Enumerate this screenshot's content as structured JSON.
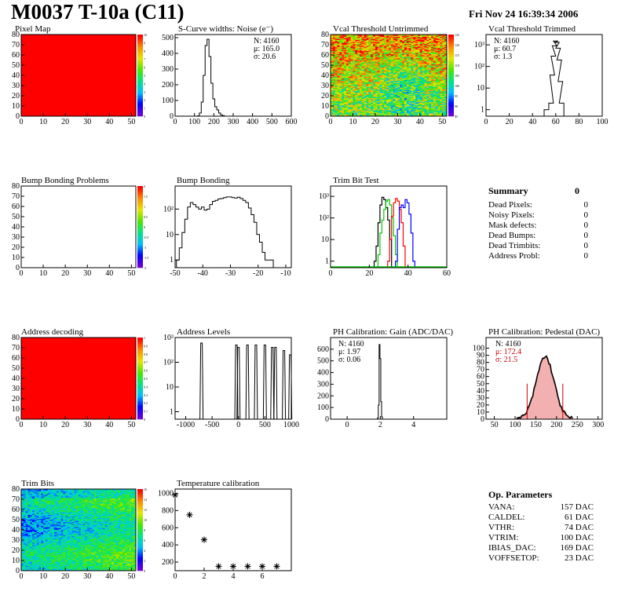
{
  "header": {
    "title": "M0037 T-10a (C11)",
    "date": "Fri Nov 24 16:39:34 2006"
  },
  "summary": {
    "title": "Summary",
    "total": "0",
    "rows": [
      {
        "label": "Dead Pixels:",
        "value": "0"
      },
      {
        "label": "Noisy Pixels:",
        "value": "0"
      },
      {
        "label": "Mask defects:",
        "value": "0"
      },
      {
        "label": "Dead Bumps:",
        "value": "0"
      },
      {
        "label": "Dead Trimbits:",
        "value": "0"
      },
      {
        "label": "Address Probl:",
        "value": "0"
      }
    ]
  },
  "op_params": {
    "title": "Op. Parameters",
    "rows": [
      {
        "label": "VANA:",
        "value": "157 DAC"
      },
      {
        "label": "CALDEL:",
        "value": "61 DAC"
      },
      {
        "label": "VTHR:",
        "value": "74 DAC"
      },
      {
        "label": "VTRIM:",
        "value": "100 DAC"
      },
      {
        "label": "IBIAS_DAC:",
        "value": "169 DAC"
      },
      {
        "label": "VOFFSETOP:",
        "value": "23 DAC"
      }
    ]
  },
  "chart_data": [
    {
      "id": "pixel-map",
      "type": "heatmap",
      "title": "Pixel Map",
      "pattern": "uniform",
      "fill_color": "#ff0000",
      "xlim": [
        0,
        52
      ],
      "ylim": [
        0,
        80
      ],
      "xticks": [
        0,
        10,
        20,
        30,
        40,
        50
      ],
      "yticks": [
        0,
        10,
        20,
        30,
        40,
        50,
        60,
        70,
        80
      ],
      "zlim": [
        0,
        10
      ],
      "zticks": [
        0,
        1,
        2,
        3,
        4,
        5,
        6,
        7,
        8,
        9,
        10
      ]
    },
    {
      "id": "scurve-widths",
      "type": "histogram",
      "title": "S-Curve widths: Noise (e⁻)",
      "xlim": [
        0,
        600
      ],
      "ylim": [
        0,
        520
      ],
      "xticks": [
        0,
        100,
        200,
        300,
        400,
        500,
        600
      ],
      "yticks": [
        0,
        100,
        200,
        300,
        400,
        500
      ],
      "stats": [
        "N: 4160",
        "μ: 165.0",
        "σ: 20.6"
      ],
      "bins": [
        {
          "x": 120,
          "y": 2
        },
        {
          "x": 130,
          "y": 20
        },
        {
          "x": 140,
          "y": 90
        },
        {
          "x": 150,
          "y": 260
        },
        {
          "x": 160,
          "y": 450
        },
        {
          "x": 170,
          "y": 490
        },
        {
          "x": 180,
          "y": 380
        },
        {
          "x": 190,
          "y": 210
        },
        {
          "x": 200,
          "y": 110
        },
        {
          "x": 210,
          "y": 60
        },
        {
          "x": 220,
          "y": 40
        },
        {
          "x": 230,
          "y": 20
        },
        {
          "x": 240,
          "y": 8
        },
        {
          "x": 250,
          "y": 3
        }
      ]
    },
    {
      "id": "vcal-untrimmed",
      "type": "heatmap",
      "title": "Vcal Threshold Untrimmed",
      "pattern": "noisy",
      "xlim": [
        0,
        52
      ],
      "ylim": [
        0,
        80
      ],
      "xticks": [
        0,
        10,
        20,
        30,
        40,
        50
      ],
      "yticks": [
        0,
        10,
        20,
        30,
        40,
        50,
        60,
        70,
        80
      ],
      "zlim": [
        85,
        125
      ],
      "zticks": [
        85,
        90,
        95,
        100,
        105,
        110,
        115,
        120,
        125
      ]
    },
    {
      "id": "vcal-trimmed",
      "type": "histogram",
      "title": "Vcal Threshold Trimmed",
      "log": true,
      "xlim": [
        0,
        100
      ],
      "ylim": [
        0.5,
        3000
      ],
      "xticks": [
        0,
        20,
        40,
        60,
        80,
        100
      ],
      "ytick_labels": [
        "1",
        "10",
        "10²",
        "10³"
      ],
      "stats": [
        "N: 4160",
        "μ: 60.7",
        "σ:  1.3"
      ],
      "bins": [
        {
          "x": 52,
          "y": 1
        },
        {
          "x": 56,
          "y": 2
        },
        {
          "x": 57,
          "y": 40
        },
        {
          "x": 58,
          "y": 300
        },
        {
          "x": 59,
          "y": 900
        },
        {
          "x": 60,
          "y": 1500
        },
        {
          "x": 61,
          "y": 1300
        },
        {
          "x": 62,
          "y": 700
        },
        {
          "x": 63,
          "y": 200
        },
        {
          "x": 64,
          "y": 20
        },
        {
          "x": 65,
          "y": 2
        }
      ]
    },
    {
      "id": "bump-problems",
      "type": "heatmap",
      "title": "Bump Bonding Problems",
      "pattern": "empty",
      "xlim": [
        0,
        52
      ],
      "ylim": [
        0,
        80
      ],
      "xticks": [
        0,
        10,
        20,
        30,
        40,
        50
      ],
      "yticks": [
        0,
        10,
        20,
        30,
        40,
        50,
        60,
        70,
        80
      ],
      "zlim": [
        -2,
        2
      ],
      "zticks": [
        -2,
        -1.5,
        -1,
        -0.5,
        0,
        0.5,
        1,
        1.5,
        2
      ]
    },
    {
      "id": "bump-bonding",
      "type": "histogram",
      "title": "Bump Bonding",
      "log": true,
      "xlim": [
        -50,
        -8
      ],
      "ylim": [
        0.5,
        800
      ],
      "xticks": [
        -50,
        -40,
        -30,
        -20,
        -10
      ],
      "ytick_labels": [
        "1",
        "10",
        "10²"
      ],
      "bins": [
        {
          "x": -49,
          "y": 1
        },
        {
          "x": -48,
          "y": 3
        },
        {
          "x": -47,
          "y": 12
        },
        {
          "x": -46,
          "y": 40
        },
        {
          "x": -45,
          "y": 120
        },
        {
          "x": -44,
          "y": 180
        },
        {
          "x": -43,
          "y": 150
        },
        {
          "x": -42,
          "y": 120
        },
        {
          "x": -41,
          "y": 100
        },
        {
          "x": -40,
          "y": 120
        },
        {
          "x": -39,
          "y": 90
        },
        {
          "x": -38,
          "y": 100
        },
        {
          "x": -37,
          "y": 150
        },
        {
          "x": -36,
          "y": 200
        },
        {
          "x": -35,
          "y": 220
        },
        {
          "x": -34,
          "y": 250
        },
        {
          "x": -33,
          "y": 260
        },
        {
          "x": -32,
          "y": 280
        },
        {
          "x": -31,
          "y": 300
        },
        {
          "x": -30,
          "y": 300
        },
        {
          "x": -29,
          "y": 280
        },
        {
          "x": -28,
          "y": 270
        },
        {
          "x": -27,
          "y": 290
        },
        {
          "x": -26,
          "y": 260
        },
        {
          "x": -25,
          "y": 220
        },
        {
          "x": -24,
          "y": 180
        },
        {
          "x": -23,
          "y": 110
        },
        {
          "x": -22,
          "y": 60
        },
        {
          "x": -21,
          "y": 30
        },
        {
          "x": -20,
          "y": 10
        },
        {
          "x": -19,
          "y": 5
        },
        {
          "x": -18,
          "y": 2
        },
        {
          "x": -17,
          "y": 1
        },
        {
          "x": -15,
          "y": 1
        }
      ]
    },
    {
      "id": "trim-bit-test",
      "type": "histogram",
      "title": "Trim Bit Test",
      "log": true,
      "xlim": [
        0,
        60
      ],
      "ylim": [
        0.5,
        3000
      ],
      "xticks": [
        0,
        20,
        40,
        60
      ],
      "ytick_labels": [
        "1",
        "10",
        "10²",
        "10³"
      ],
      "series": [
        {
          "color": "#000000",
          "bins": [
            {
              "x": 23,
              "y": 1
            },
            {
              "x": 24,
              "y": 5
            },
            {
              "x": 25,
              "y": 60
            },
            {
              "x": 26,
              "y": 400
            },
            {
              "x": 27,
              "y": 900
            },
            {
              "x": 28,
              "y": 700
            },
            {
              "x": 29,
              "y": 300
            },
            {
              "x": 30,
              "y": 80
            },
            {
              "x": 31,
              "y": 10
            }
          ]
        },
        {
          "color": "#00cc00",
          "bins": [
            {
              "x": 25,
              "y": 2
            },
            {
              "x": 26,
              "y": 20
            },
            {
              "x": 27,
              "y": 80
            },
            {
              "x": 28,
              "y": 250
            },
            {
              "x": 29,
              "y": 600
            },
            {
              "x": 30,
              "y": 700
            },
            {
              "x": 31,
              "y": 400
            },
            {
              "x": 32,
              "y": 100
            },
            {
              "x": 33,
              "y": 15
            },
            {
              "x": 34,
              "y": 2
            }
          ]
        },
        {
          "color": "#ff0000",
          "bins": [
            {
              "x": 30,
              "y": 1
            },
            {
              "x": 31,
              "y": 10
            },
            {
              "x": 32,
              "y": 120
            },
            {
              "x": 33,
              "y": 500
            },
            {
              "x": 34,
              "y": 800
            },
            {
              "x": 35,
              "y": 600
            },
            {
              "x": 36,
              "y": 250
            },
            {
              "x": 37,
              "y": 60
            },
            {
              "x": 38,
              "y": 5
            }
          ]
        },
        {
          "color": "#0000ff",
          "bins": [
            {
              "x": 34,
              "y": 1
            },
            {
              "x": 35,
              "y": 30
            },
            {
              "x": 36,
              "y": 300
            },
            {
              "x": 37,
              "y": 400
            },
            {
              "x": 38,
              "y": 300
            },
            {
              "x": 39,
              "y": 700
            },
            {
              "x": 40,
              "y": 500
            },
            {
              "x": 41,
              "y": 150
            },
            {
              "x": 42,
              "y": 20
            },
            {
              "x": 43,
              "y": 1
            }
          ]
        }
      ]
    },
    {
      "id": "address-decoding",
      "type": "heatmap",
      "title": "Address decoding",
      "pattern": "uniform",
      "fill_color": "#ff0000",
      "xlim": [
        0,
        52
      ],
      "ylim": [
        0,
        80
      ],
      "xticks": [
        0,
        10,
        20,
        30,
        40,
        50
      ],
      "yticks": [
        0,
        10,
        20,
        30,
        40,
        50,
        60,
        70,
        80
      ],
      "zlim": [
        0,
        1
      ],
      "zticks": [
        0,
        0.1,
        0.2,
        0.3,
        0.4,
        0.5,
        0.6,
        0.7,
        0.8,
        0.9,
        1
      ]
    },
    {
      "id": "address-levels",
      "type": "histogram",
      "title": "Address Levels",
      "log": true,
      "xlim": [
        -1200,
        1000
      ],
      "ylim": [
        0.5,
        1000
      ],
      "xticks": [
        -1000,
        -500,
        0,
        500,
        1000
      ],
      "ytick_labels": [
        "1",
        "10",
        "10²",
        "10³"
      ],
      "spikes": [
        {
          "x": -700,
          "y": 600
        },
        {
          "x": -40,
          "y": 500
        },
        {
          "x": 0,
          "y": 400
        },
        {
          "x": 170,
          "y": 500
        },
        {
          "x": 330,
          "y": 500
        },
        {
          "x": 500,
          "y": 500
        },
        {
          "x": 640,
          "y": 400
        },
        {
          "x": 700,
          "y": 400
        },
        {
          "x": 860,
          "y": 300
        },
        {
          "x": 980,
          "y": 200
        }
      ]
    },
    {
      "id": "ph-gain",
      "type": "histogram",
      "title": "PH Calibration: Gain (ADC/DAC)",
      "xlim": [
        -1,
        6
      ],
      "ylim": [
        0,
        700
      ],
      "xticks": [
        0,
        2,
        4
      ],
      "yticks": [
        0,
        100,
        200,
        300,
        400,
        500,
        600
      ],
      "stats": [
        "N: 4160",
        "μ: 1.97",
        "σ: 0.06"
      ],
      "bins": [
        {
          "x": 1.85,
          "y": 10
        },
        {
          "x": 1.9,
          "y": 120
        },
        {
          "x": 1.95,
          "y": 640
        },
        {
          "x": 2.0,
          "y": 520
        },
        {
          "x": 2.05,
          "y": 150
        },
        {
          "x": 2.1,
          "y": 20
        }
      ]
    },
    {
      "id": "ph-pedestal",
      "type": "histogram",
      "title": "PH Calibration: Pedestal (DAC)",
      "xlim": [
        30,
        310
      ],
      "ylim": [
        0,
        115
      ],
      "xticks": [
        50,
        100,
        150,
        200,
        250,
        300
      ],
      "yticks": [
        0,
        10,
        20,
        30,
        40,
        50,
        60,
        70,
        80,
        90,
        100
      ],
      "stats": [
        "N: 4160",
        "μ: 172.4",
        "σ: 21.5"
      ],
      "stats_colors": [
        "#000000",
        "#cc0000",
        "#cc0000"
      ],
      "mean": 172.4,
      "sigma": 21.5,
      "cut_lines": [
        129,
        215
      ]
    },
    {
      "id": "trim-bits",
      "type": "heatmap",
      "title": "Trim Bits",
      "pattern": "trim",
      "xlim": [
        0,
        52
      ],
      "ylim": [
        0,
        80
      ],
      "xticks": [
        0,
        10,
        20,
        30,
        40,
        50
      ],
      "yticks": [
        0,
        10,
        20,
        30,
        40,
        50,
        60,
        70,
        80
      ],
      "zlim": [
        0,
        16
      ],
      "zticks": [
        0,
        2,
        4,
        6,
        8,
        10,
        12,
        14,
        16
      ]
    },
    {
      "id": "temp-cal",
      "type": "scatter",
      "title": "Temperature calibration",
      "xlim": [
        0,
        8
      ],
      "ylim": [
        100,
        1050
      ],
      "xticks": [
        0,
        2,
        4,
        6
      ],
      "yticks": [
        200,
        400,
        600,
        800,
        1000
      ],
      "points": [
        {
          "x": 0,
          "y": 980
        },
        {
          "x": 1,
          "y": 750
        },
        {
          "x": 2,
          "y": 460
        },
        {
          "x": 3,
          "y": 150
        },
        {
          "x": 4,
          "y": 150
        },
        {
          "x": 5,
          "y": 150
        },
        {
          "x": 6,
          "y": 150
        },
        {
          "x": 7,
          "y": 150
        }
      ]
    }
  ]
}
